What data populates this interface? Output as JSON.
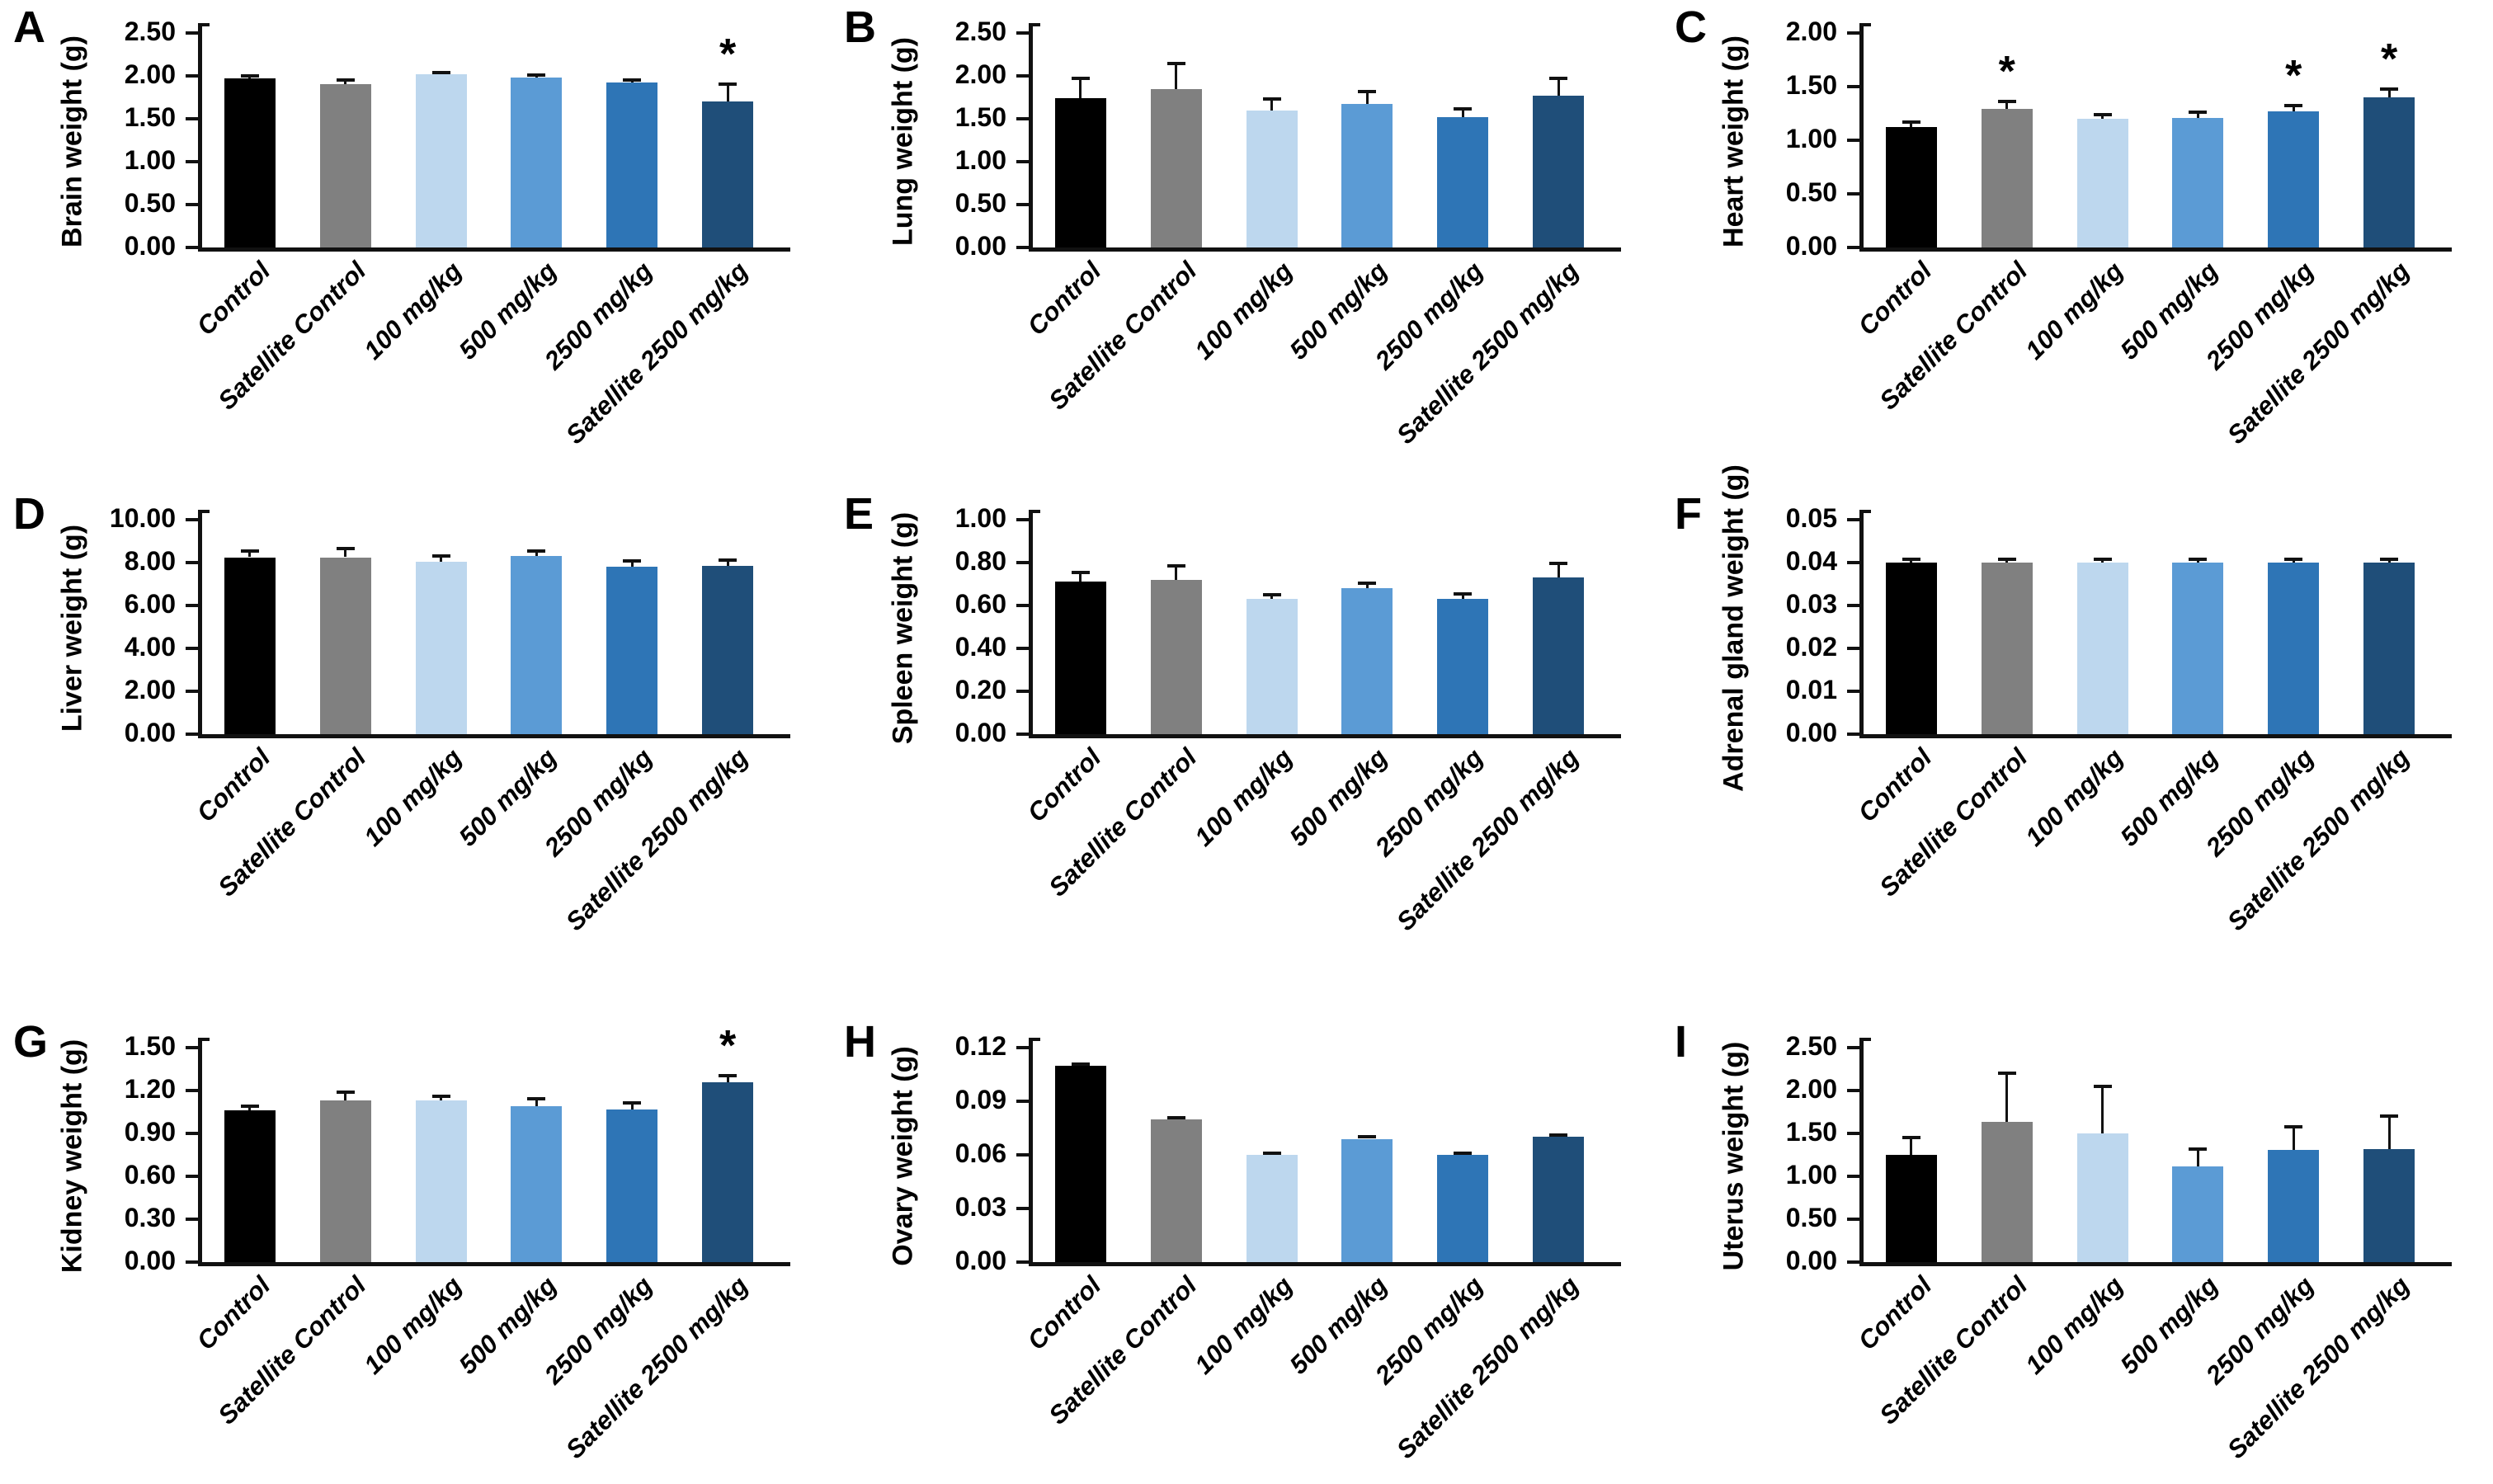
{
  "figure": {
    "description": "Organ weights bar chart figure, panels A-I",
    "background": "#ffffff",
    "axis_color": "#111111",
    "text_color": "#000000"
  },
  "categories": [
    "Control",
    "Satellite Control",
    "100 mg/kg",
    "500 mg/kg",
    "2500 mg/kg",
    "Satellite 2500 mg/kg"
  ],
  "bar_colors": [
    "#000000",
    "#808080",
    "#BDD7EE",
    "#5B9BD5",
    "#2E75B6",
    "#1F4E79"
  ],
  "significance_marker": "*",
  "chart_data": [
    {
      "panel": "A",
      "type": "bar",
      "ylabel": "Brain weight (g)",
      "ymax": 2.5,
      "tick_step": 0.5,
      "categories": [
        "Control",
        "Satellite Control",
        "100 mg/kg",
        "500 mg/kg",
        "2500 mg/kg",
        "Satellite 2500 mg/kg"
      ],
      "values": [
        1.97,
        1.9,
        2.02,
        1.98,
        1.92,
        1.7
      ],
      "errors": [
        0.03,
        0.05,
        0.02,
        0.03,
        0.03,
        0.2
      ],
      "sig": [
        false,
        false,
        false,
        false,
        false,
        true
      ]
    },
    {
      "panel": "B",
      "type": "bar",
      "ylabel": "Lung weight (g)",
      "ymax": 2.5,
      "tick_step": 0.5,
      "categories": [
        "Control",
        "Satellite Control",
        "100 mg/kg",
        "500 mg/kg",
        "2500 mg/kg",
        "Satellite 2500 mg/kg"
      ],
      "values": [
        1.74,
        1.85,
        1.6,
        1.67,
        1.52,
        1.77
      ],
      "errors": [
        0.23,
        0.29,
        0.13,
        0.15,
        0.1,
        0.2
      ],
      "sig": [
        false,
        false,
        false,
        false,
        false,
        false
      ]
    },
    {
      "panel": "C",
      "type": "bar",
      "ylabel": "Heart weight (g)",
      "ymax": 2.0,
      "tick_step": 0.5,
      "categories": [
        "Control",
        "Satellite Control",
        "100 mg/kg",
        "500 mg/kg",
        "2500 mg/kg",
        "Satellite 2500 mg/kg"
      ],
      "values": [
        1.12,
        1.29,
        1.2,
        1.21,
        1.27,
        1.4
      ],
      "errors": [
        0.05,
        0.07,
        0.04,
        0.05,
        0.05,
        0.08
      ],
      "sig": [
        false,
        true,
        false,
        false,
        true,
        true
      ]
    },
    {
      "panel": "D",
      "type": "bar",
      "ylabel": "Liver weight (g)",
      "ymax": 10.0,
      "tick_step": 2.0,
      "categories": [
        "Control",
        "Satellite Control",
        "100 mg/kg",
        "500 mg/kg",
        "2500 mg/kg",
        "Satellite 2500 mg/kg"
      ],
      "values": [
        8.25,
        8.25,
        8.05,
        8.3,
        7.82,
        7.85
      ],
      "errors": [
        0.3,
        0.4,
        0.25,
        0.25,
        0.25,
        0.25
      ],
      "sig": [
        false,
        false,
        false,
        false,
        false,
        false
      ]
    },
    {
      "panel": "E",
      "type": "bar",
      "ylabel": "Spleen weight (g)",
      "ymax": 1.0,
      "tick_step": 0.2,
      "categories": [
        "Control",
        "Satellite Control",
        "100 mg/kg",
        "500 mg/kg",
        "2500 mg/kg",
        "Satellite 2500 mg/kg"
      ],
      "values": [
        0.71,
        0.72,
        0.63,
        0.68,
        0.63,
        0.73
      ],
      "errors": [
        0.045,
        0.065,
        0.02,
        0.025,
        0.025,
        0.065
      ],
      "sig": [
        false,
        false,
        false,
        false,
        false,
        false
      ]
    },
    {
      "panel": "F",
      "type": "bar",
      "ylabel": "Adrenal gland weight (g)",
      "ymax": 0.05,
      "tick_step": 0.01,
      "categories": [
        "Control",
        "Satellite Control",
        "100 mg/kg",
        "500 mg/kg",
        "2500 mg/kg",
        "Satellite 2500 mg/kg"
      ],
      "values": [
        0.04,
        0.04,
        0.04,
        0.04,
        0.04,
        0.04
      ],
      "errors": [
        0.0008,
        0.0008,
        0.0008,
        0.0008,
        0.0008,
        0.0008
      ],
      "sig": [
        false,
        false,
        false,
        false,
        false,
        false
      ]
    },
    {
      "panel": "G",
      "type": "bar",
      "ylabel": "Kidney weight (g)",
      "ymax": 1.5,
      "tick_step": 0.3,
      "categories": [
        "Control",
        "Satellite Control",
        "100 mg/kg",
        "500 mg/kg",
        "2500 mg/kg",
        "Satellite 2500 mg/kg"
      ],
      "values": [
        1.06,
        1.13,
        1.13,
        1.09,
        1.07,
        1.26
      ],
      "errors": [
        0.03,
        0.06,
        0.03,
        0.055,
        0.045,
        0.045
      ],
      "sig": [
        false,
        false,
        false,
        false,
        false,
        true
      ]
    },
    {
      "panel": "H",
      "type": "bar",
      "ylabel": "Ovary weight (g)",
      "ymax": 0.12,
      "tick_step": 0.03,
      "categories": [
        "Control",
        "Satellite Control",
        "100 mg/kg",
        "500 mg/kg",
        "2500 mg/kg",
        "Satellite 2500 mg/kg"
      ],
      "values": [
        0.11,
        0.08,
        0.06,
        0.069,
        0.06,
        0.07
      ],
      "errors": [
        0.001,
        0.001,
        0.001,
        0.001,
        0.001,
        0.001
      ],
      "sig": [
        false,
        false,
        false,
        false,
        false,
        false
      ]
    },
    {
      "panel": "I",
      "type": "bar",
      "ylabel": "Uterus weight (g)",
      "ymax": 2.5,
      "tick_step": 0.5,
      "categories": [
        "Control",
        "Satellite Control",
        "100 mg/kg",
        "500 mg/kg",
        "2500 mg/kg",
        "Satellite 2500 mg/kg"
      ],
      "values": [
        1.25,
        1.63,
        1.5,
        1.12,
        1.31,
        1.32
      ],
      "errors": [
        0.2,
        0.57,
        0.55,
        0.2,
        0.27,
        0.38
      ],
      "sig": [
        false,
        false,
        false,
        false,
        false,
        false
      ]
    }
  ]
}
